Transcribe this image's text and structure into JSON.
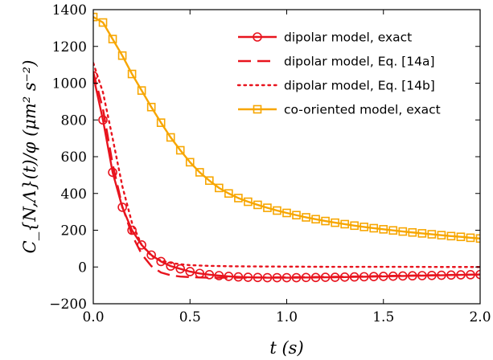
{
  "chart_data": {
    "type": "line",
    "title": "",
    "xlabel": "t    (s)",
    "ylabel": "C_{N,Λ}(t)/φ    (μm² s⁻²)",
    "xlim": [
      0.0,
      2.0
    ],
    "ylim": [
      -200,
      1400
    ],
    "xticks": [
      "0.0",
      "0.5",
      "1.0",
      "1.5",
      "2.0"
    ],
    "yticks": [
      "−200",
      "0",
      "200",
      "400",
      "600",
      "800",
      "1000",
      "1200",
      "1400"
    ],
    "legend_position": "top-right",
    "grid": false,
    "series": [
      {
        "name": "dipolar model, exact",
        "color": "#e8141e",
        "style": "solid-circle",
        "x": [
          0.0,
          0.05,
          0.1,
          0.15,
          0.2,
          0.25,
          0.3,
          0.35,
          0.4,
          0.45,
          0.5,
          0.55,
          0.6,
          0.65,
          0.7,
          0.75,
          0.8,
          0.85,
          0.9,
          0.95,
          1.0,
          1.05,
          1.1,
          1.15,
          1.2,
          1.25,
          1.3,
          1.35,
          1.4,
          1.45,
          1.5,
          1.55,
          1.6,
          1.65,
          1.7,
          1.75,
          1.8,
          1.85,
          1.9,
          1.95,
          2.0
        ],
        "values": [
          1040,
          800,
          515,
          325,
          200,
          120,
          65,
          30,
          5,
          -10,
          -25,
          -35,
          -42,
          -47,
          -51,
          -54,
          -56,
          -57,
          -58,
          -58,
          -58,
          -58,
          -57,
          -57,
          -56,
          -56,
          -55,
          -54,
          -53,
          -52,
          -51,
          -50,
          -49,
          -48,
          -47,
          -46,
          -45,
          -44,
          -43,
          -42,
          -41
        ]
      },
      {
        "name": "dipolar model, Eq. [14a]",
        "color": "#e8141e",
        "style": "dashed",
        "x": [
          0.0,
          0.05,
          0.1,
          0.15,
          0.2,
          0.25,
          0.3,
          0.35,
          0.4,
          0.45,
          0.5,
          0.55,
          0.6,
          0.7,
          0.8,
          0.9,
          1.0,
          1.2,
          1.4,
          1.6,
          1.8,
          2.0
        ],
        "values": [
          1060,
          860,
          560,
          330,
          175,
          70,
          5,
          -30,
          -45,
          -52,
          -55,
          -57,
          -58,
          -58,
          -58,
          -57,
          -56,
          -54,
          -51,
          -47,
          -44,
          -41
        ]
      },
      {
        "name": "dipolar model, Eq. [14b]",
        "color": "#e8141e",
        "style": "dotted",
        "x": [
          0.0,
          0.05,
          0.1,
          0.15,
          0.2,
          0.25,
          0.3,
          0.35,
          0.4,
          0.45,
          0.5,
          0.6,
          0.7,
          0.8,
          1.0,
          1.2,
          1.4,
          1.6,
          1.8,
          2.0
        ],
        "values": [
          1110,
          950,
          700,
          440,
          240,
          120,
          60,
          35,
          22,
          15,
          10,
          6,
          4,
          3,
          2,
          1,
          1,
          1,
          0,
          0
        ]
      },
      {
        "name": "co-oriented model, exact",
        "color": "#f7a600",
        "style": "solid-square",
        "x": [
          0.0,
          0.05,
          0.1,
          0.15,
          0.2,
          0.25,
          0.3,
          0.35,
          0.4,
          0.45,
          0.5,
          0.55,
          0.6,
          0.65,
          0.7,
          0.75,
          0.8,
          0.85,
          0.9,
          0.95,
          1.0,
          1.05,
          1.1,
          1.15,
          1.2,
          1.25,
          1.3,
          1.35,
          1.4,
          1.45,
          1.5,
          1.55,
          1.6,
          1.65,
          1.7,
          1.75,
          1.8,
          1.85,
          1.9,
          1.95,
          2.0
        ],
        "values": [
          1360,
          1330,
          1240,
          1150,
          1050,
          960,
          870,
          785,
          705,
          635,
          570,
          515,
          470,
          430,
          400,
          375,
          355,
          338,
          322,
          307,
          294,
          282,
          270,
          260,
          250,
          241,
          233,
          225,
          218,
          211,
          205,
          199,
          193,
          188,
          183,
          178,
          173,
          168,
          164,
          159,
          155
        ]
      }
    ]
  }
}
